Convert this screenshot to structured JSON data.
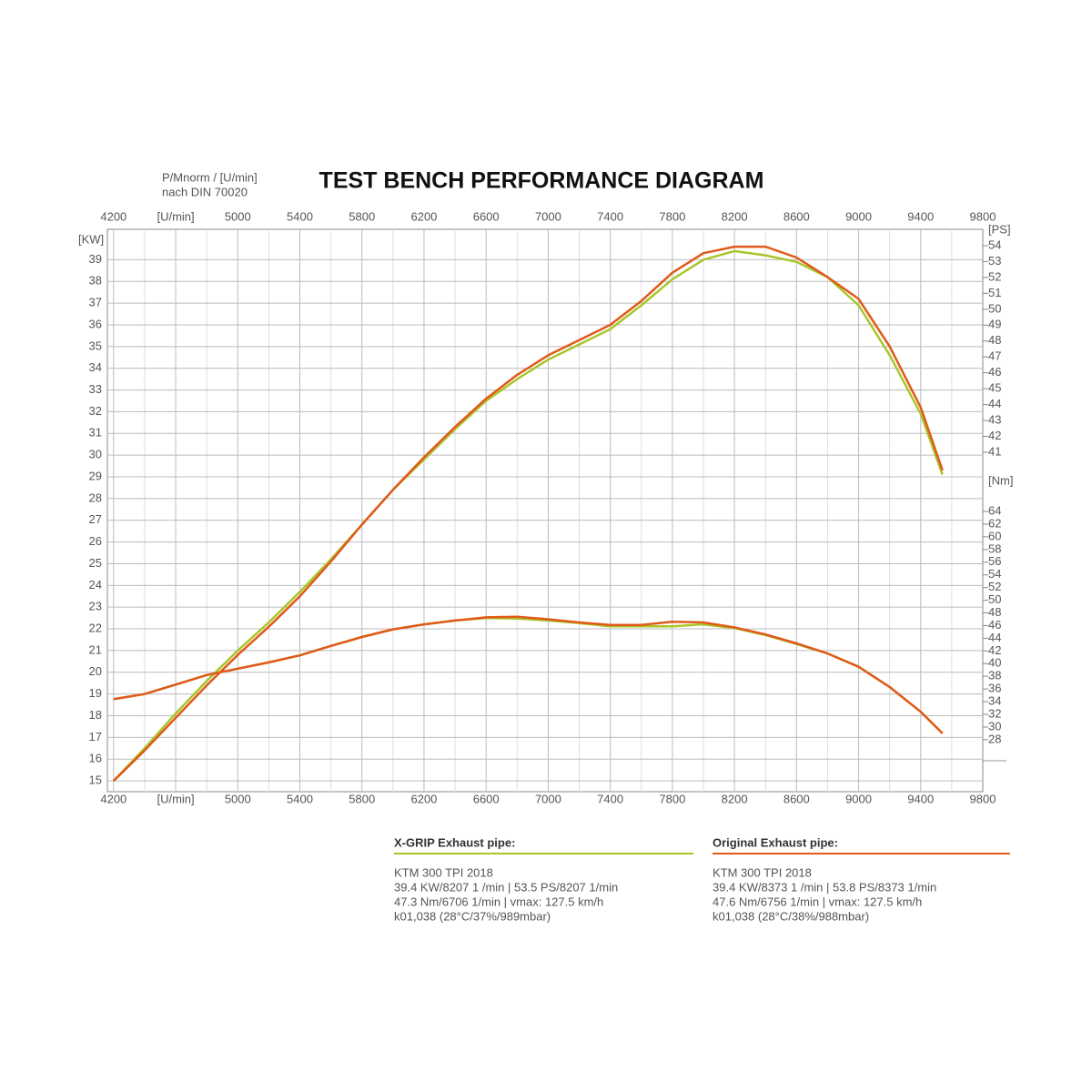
{
  "chart_data": {
    "type": "line",
    "title": "TEST BENCH PERFORMANCE DIAGRAM",
    "note": [
      "P/Mnorm / [U/min]",
      "nach DIN 70020"
    ],
    "ylabel": "[KW]",
    "y2label": "[PS]",
    "y3label": "[Nm]",
    "grid": true,
    "xlim": [
      4160,
      9800
    ],
    "xticks": [
      4200,
      {
        "value": 4600,
        "label": "[U/min]"
      },
      5000,
      5400,
      5800,
      6200,
      6600,
      7000,
      7400,
      7800,
      8200,
      8600,
      9000,
      9400,
      9800
    ],
    "ylim": [
      14.5,
      40.4
    ],
    "yticks": [
      15,
      16,
      17,
      18,
      19,
      20,
      21,
      22,
      23,
      24,
      25,
      26,
      27,
      28,
      29,
      30,
      31,
      32,
      33,
      34,
      35,
      36,
      37,
      38,
      39
    ],
    "y2lim": [
      19.64,
      55.03
    ],
    "y2ticks": [
      41,
      42,
      43,
      44,
      45,
      46,
      47,
      48,
      49,
      50,
      51,
      52,
      53,
      54
    ],
    "y3lim": [
      19.8,
      108.5
    ],
    "y3ticks": [
      28,
      30,
      32,
      34,
      36,
      38,
      40,
      42,
      44,
      46,
      48,
      50,
      52,
      54,
      56,
      58,
      60,
      62,
      64
    ],
    "x": [
      4200,
      4400,
      4600,
      4800,
      5000,
      5200,
      5400,
      5600,
      5800,
      6000,
      6200,
      6400,
      6600,
      6800,
      7000,
      7200,
      7400,
      7600,
      7800,
      8000,
      8200,
      8400,
      8600,
      8800,
      9000,
      9200,
      9400,
      9540
    ],
    "series": [
      {
        "name": "X-GRIP Exhaust pipe:",
        "color": "#a8c62a",
        "values": [
          15.0,
          16.5,
          18.1,
          19.6,
          21.0,
          22.3,
          23.7,
          25.2,
          26.8,
          28.4,
          29.8,
          31.2,
          32.5,
          33.5,
          34.4,
          35.1,
          35.8,
          36.9,
          38.1,
          39.0,
          39.4,
          39.2,
          38.9,
          38.2,
          36.9,
          34.6,
          31.9,
          29.1
        ],
        "torque_axis": "y3",
        "torque_values": [
          34.4,
          35.2,
          36.7,
          38.2,
          39.2,
          40.2,
          41.3,
          42.8,
          44.2,
          45.4,
          46.2,
          46.8,
          47.2,
          47.1,
          46.8,
          46.4,
          45.9,
          45.9,
          45.9,
          46.2,
          45.6,
          44.5,
          43.1,
          41.6,
          39.5,
          36.3,
          32.4,
          29.0
        ],
        "details": [
          "KTM 300 TPI 2018",
          "39.4 KW/8207 1 /min | 53.5 PS/8207 1/min",
          "47.3 Nm/6706 1/min | vmax: 127.5 km/h",
          "k01,038 (28°C/37%/989mbar)"
        ]
      },
      {
        "name": "Original Exhaust pipe:",
        "color": "#e05a1a",
        "values": [
          15.0,
          16.4,
          17.9,
          19.4,
          20.8,
          22.1,
          23.5,
          25.1,
          26.8,
          28.4,
          29.9,
          31.3,
          32.6,
          33.7,
          34.6,
          35.3,
          36.0,
          37.1,
          38.4,
          39.3,
          39.6,
          39.6,
          39.1,
          38.2,
          37.2,
          35.0,
          32.2,
          29.3
        ],
        "torque_axis": "y3",
        "torque_values": [
          34.4,
          35.2,
          36.7,
          38.2,
          39.2,
          40.2,
          41.3,
          42.8,
          44.2,
          45.4,
          46.2,
          46.8,
          47.3,
          47.4,
          47.0,
          46.5,
          46.1,
          46.1,
          46.6,
          46.5,
          45.7,
          44.6,
          43.2,
          41.6,
          39.5,
          36.3,
          32.4,
          29.0
        ],
        "details": [
          "KTM 300 TPI 2018",
          "39.4 KW/8373 1 /min | 53.8 PS/8373 1/min",
          "47.6 Nm/6756 1/min | vmax: 127.5 km/h",
          "k01,038 (28°C/38%/988mbar)"
        ]
      }
    ]
  }
}
